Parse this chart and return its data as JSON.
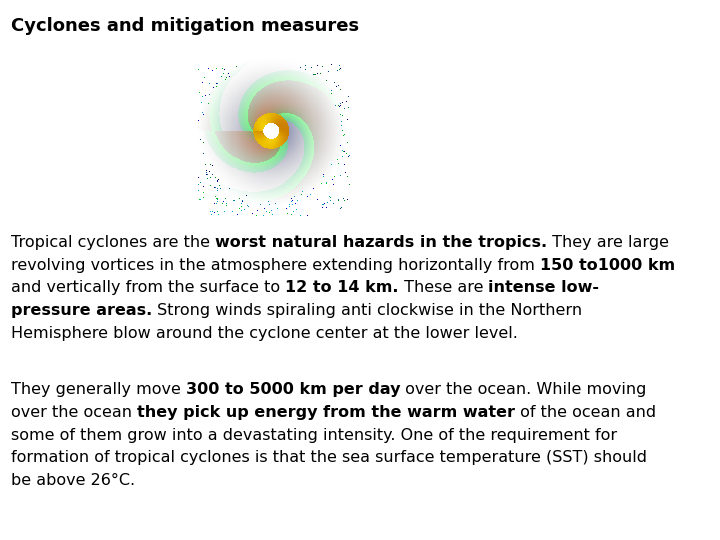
{
  "title": "Cyclones and mitigation measures",
  "background_color": "#ffffff",
  "title_fontsize": 13,
  "body_fontsize": 11.5,
  "paragraph1_segments": [
    {
      "text": "Tropical cyclones are the ",
      "bold": false
    },
    {
      "text": "worst natural hazards in the tropics.",
      "bold": true
    },
    {
      "text": " They are large\nrevolving vortices in the atmosphere extending horizontally from ",
      "bold": false
    },
    {
      "text": "150 to1000 km",
      "bold": true
    },
    {
      "text": "\nand vertically from the surface to ",
      "bold": false
    },
    {
      "text": "12 to 14 km.",
      "bold": true
    },
    {
      "text": " These are ",
      "bold": false
    },
    {
      "text": "intense low-\npressure areas.",
      "bold": true
    },
    {
      "text": " Strong winds spiraling anti clockwise in the Northern\nHemisphere blow around the cyclone center at the lower level.",
      "bold": false
    }
  ],
  "paragraph2_segments": [
    {
      "text": "They generally move ",
      "bold": false
    },
    {
      "text": "300 to 5000 km per day",
      "bold": true
    },
    {
      "text": " over the ocean. While moving\nover the ocean ",
      "bold": false
    },
    {
      "text": "they pick up energy from the warm water",
      "bold": true
    },
    {
      "text": " of the ocean and\nsome of them grow into a devastating intensity. One of the requirement for\nformation of tropical cyclones is that the sea surface temperature (SST) should\nbe above 26°C.",
      "bold": false
    }
  ]
}
